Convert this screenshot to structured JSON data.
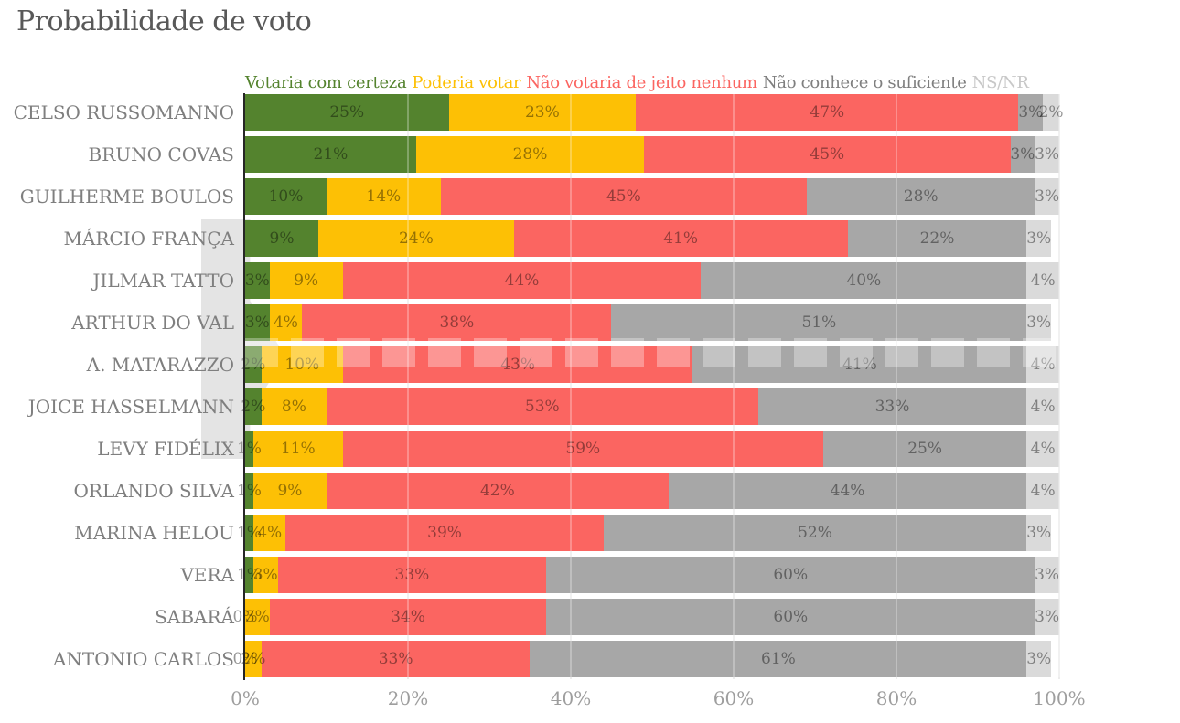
{
  "title": "Probabilidade de voto",
  "legend": [
    {
      "label": "Votaria com certeza",
      "color": "#54832E"
    },
    {
      "label": "Poderia votar",
      "color": "#FDC005"
    },
    {
      "label": "Não votaria de jeito nenhum",
      "color": "#FB6561"
    },
    {
      "label": "Não conhece o suficiente",
      "color": "#7F7F7F"
    },
    {
      "label": "NS/NR",
      "color": "#C8C8C8"
    }
  ],
  "chart_data": {
    "type": "bar",
    "orientation": "horizontal",
    "stacked": true,
    "unit": "%",
    "title": "Probabilidade de voto",
    "categories": [
      "CELSO RUSSOMANNO",
      "BRUNO COVAS",
      "GUILHERME BOULOS",
      "MÁRCIO FRANÇA",
      "JILMAR TATTO",
      "ARTHUR DO VAL",
      "A. MATARAZZO",
      "JOICE HASSELMANN",
      "LEVY FIDÉLIX",
      "ORLANDO SILVA",
      "MARINA HELOU",
      "VERA",
      "SABARÁ",
      "ANTONIO CARLOS"
    ],
    "series": [
      {
        "name": "Votaria com certeza",
        "color": "#54832E",
        "values": [
          25,
          21,
          10,
          9,
          3,
          3,
          2,
          2,
          1,
          1,
          1,
          1,
          0,
          0
        ]
      },
      {
        "name": "Poderia votar",
        "color": "#FDC005",
        "values": [
          23,
          28,
          14,
          24,
          9,
          4,
          10,
          8,
          11,
          9,
          4,
          3,
          3,
          2
        ]
      },
      {
        "name": "Não votaria de jeito nenhum",
        "color": "#FB6561",
        "values": [
          47,
          45,
          45,
          41,
          44,
          38,
          43,
          53,
          59,
          42,
          39,
          33,
          34,
          33
        ]
      },
      {
        "name": "Não conhece o suficiente",
        "color": "#A7A7A7",
        "values": [
          3,
          3,
          28,
          22,
          40,
          51,
          41,
          33,
          25,
          44,
          52,
          60,
          60,
          61
        ]
      },
      {
        "name": "NS/NR",
        "color": "#DADADA",
        "values": [
          2,
          3,
          3,
          3,
          4,
          3,
          4,
          4,
          4,
          4,
          3,
          3,
          3,
          3
        ]
      }
    ],
    "x_axis": {
      "ticks": [
        "0%",
        "20%",
        "40%",
        "60%",
        "80%",
        "100%"
      ],
      "range": [
        0,
        100
      ]
    },
    "grid": true,
    "legend_position": "top",
    "value_labels": "inside"
  }
}
